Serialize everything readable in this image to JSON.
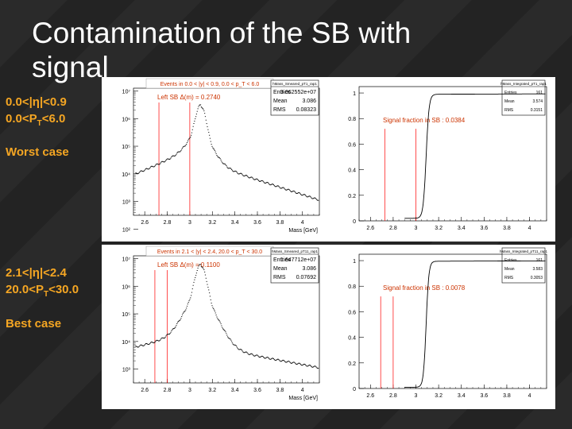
{
  "slide": {
    "title": "Contamination of the SB with signal",
    "worst": {
      "line1": "0.0<|η|<0.9",
      "line2_pre": "0.0<P",
      "line2_sub": "T",
      "line2_post": "<6.0",
      "label": "Worst case"
    },
    "best": {
      "line1": "2.1<|η|<2.4",
      "line2_pre": "20.0<P",
      "line2_sub": "T",
      "line2_post": "<30.0",
      "label": "Best case"
    }
  },
  "colors": {
    "accent": "#f5a623",
    "annotation": "#cc3300",
    "marker": "#ff0000"
  },
  "chart_data": [
    {
      "type": "scatter",
      "title": "Events in 0.0 < |y| < 0.9, 0.0 < p_T < 6.0",
      "histname": "hMass_Smeared_pT1_rap1",
      "stats": [
        [
          "Entries",
          "3.062552e+07"
        ],
        [
          "Mean",
          "3.086"
        ],
        [
          "RMS",
          "0.08323"
        ]
      ],
      "annotation": "Left SB  Δ(m) = 0.2740",
      "xlabel": "Mass [GeV]",
      "xlim": [
        2.5,
        4.15
      ],
      "ylog": true,
      "ylim_exp": [
        2.5,
        7.1
      ],
      "xticks": [
        "2.6",
        "2.8",
        "3",
        "3.2",
        "3.4",
        "3.6",
        "3.8",
        "4"
      ],
      "yticks": [
        "10²",
        "10³",
        "10⁴",
        "10⁵",
        "10⁶",
        "10⁷"
      ],
      "markers": [
        2.726,
        3.0
      ],
      "bg_log": [
        4.0,
        4.9
      ],
      "bg_end_log": 2.9,
      "peak": {
        "x": 3.097,
        "log": 6.5,
        "width": 0.03,
        "tail": 0.075
      }
    },
    {
      "type": "line",
      "histname": "hMass_Integrated_pT1_rap1",
      "stats": [
        [
          "Entries",
          "161"
        ],
        [
          "Mean",
          "3.574"
        ],
        [
          "RMS",
          "0.3151"
        ]
      ],
      "annotation": "Signal fraction in SB : 0.0384",
      "xlim": [
        2.5,
        4.15
      ],
      "ylim": [
        0,
        1.05
      ],
      "xticks": [
        "2.6",
        "2.8",
        "3",
        "3.2",
        "3.4",
        "3.6",
        "3.8",
        "4"
      ],
      "yticks": [
        "0",
        "0.2",
        "0.4",
        "0.6",
        "0.8",
        "1"
      ],
      "markers": [
        2.726,
        3.0
      ],
      "step": {
        "x0": 2.9,
        "y0": 0.02,
        "center": 3.09,
        "width": 0.013,
        "plateau": 0.99
      }
    },
    {
      "type": "scatter",
      "title": "Events in 2.1 < |y| < 2.4, 20.0 < p_T < 30.0",
      "histname": "hMass_Smeared_pT11_rap1",
      "stats": [
        [
          "Entries",
          "1.647712e+07"
        ],
        [
          "Mean",
          "3.086"
        ],
        [
          "RMS",
          "0.07692"
        ]
      ],
      "annotation": "Left SB  Δ(m) = 0.1100",
      "xlabel": "Mass [GeV]",
      "xlim": [
        2.5,
        4.15
      ],
      "ylog": true,
      "ylim_exp": [
        2.5,
        7.1
      ],
      "xticks": [
        "2.6",
        "2.8",
        "3",
        "3.2",
        "3.4",
        "3.6",
        "3.8",
        "4"
      ],
      "yticks": [
        "10³",
        "10⁴",
        "10⁵",
        "10⁶",
        "10⁷"
      ],
      "markers": [
        2.69,
        2.8
      ],
      "bg_log": [
        3.8,
        4.3
      ],
      "bg_end_log": 2.9,
      "peak": {
        "x": 3.097,
        "log": 6.8,
        "width": 0.032,
        "tail": 0.08
      }
    },
    {
      "type": "line",
      "histname": "hMass_Integrated_pT11_rap1",
      "stats": [
        [
          "Entries",
          "161"
        ],
        [
          "Mean",
          "3.583"
        ],
        [
          "RMS",
          "0.3053"
        ]
      ],
      "annotation": "Signal fraction in SB : 0.0078",
      "xlim": [
        2.5,
        4.15
      ],
      "ylim": [
        0,
        1.05
      ],
      "xticks": [
        "2.6",
        "2.8",
        "3",
        "3.2",
        "3.4",
        "3.6",
        "3.8",
        "4"
      ],
      "yticks": [
        "0",
        "0.2",
        "0.4",
        "0.6",
        "0.8",
        "1"
      ],
      "markers": [
        2.69,
        2.8
      ],
      "step": {
        "x0": 2.9,
        "y0": 0.01,
        "center": 3.09,
        "width": 0.012,
        "plateau": 0.995
      }
    }
  ]
}
